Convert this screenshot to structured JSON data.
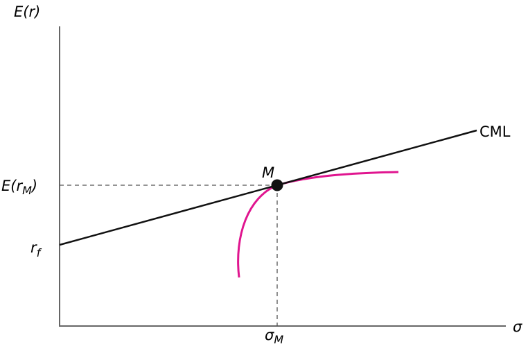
{
  "y_axis_label": "E(r)",
  "x_axis_label": "σ",
  "line_label": "CML",
  "point_label": "M",
  "market_return": {
    "base": "E(r",
    "sub": "M",
    "close": ")"
  },
  "risk_free": {
    "base": "r",
    "sub": "f"
  },
  "market_sd": {
    "base": "σ",
    "sub": "M"
  }
}
